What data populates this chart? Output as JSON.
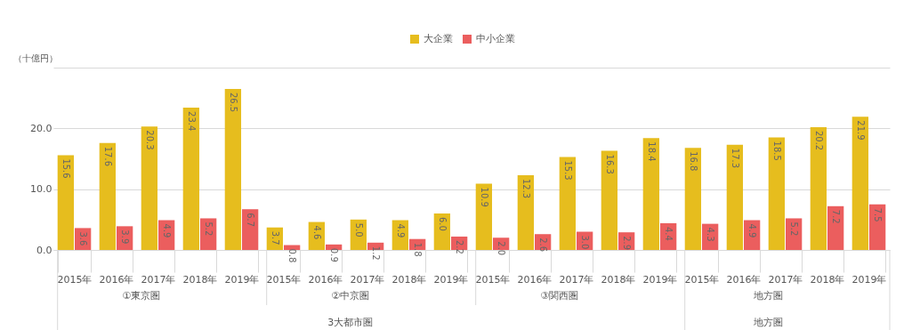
{
  "chart_data": {
    "type": "bar",
    "ylabel": "（十億円）",
    "categories": [
      "2015年",
      "2016年",
      "2017年",
      "2018年",
      "2019年",
      "2015年",
      "2016年",
      "2017年",
      "2018年",
      "2019年",
      "2015年",
      "2016年",
      "2017年",
      "2018年",
      "2019年",
      "2015年",
      "2016年",
      "2017年",
      "2018年",
      "2019年"
    ],
    "series": [
      {
        "name": "大企業",
        "color": "#e6bd1e",
        "values": [
          15.6,
          17.6,
          20.3,
          23.4,
          26.5,
          3.7,
          4.6,
          5.0,
          4.9,
          6.0,
          10.9,
          12.3,
          15.3,
          16.3,
          18.4,
          16.8,
          17.3,
          18.5,
          20.2,
          21.9
        ],
        "value_labels": [
          "15.6",
          "17.6",
          "20.3",
          "23.4",
          "26.5",
          "3.7",
          "4.6",
          "5.0",
          "4.9",
          "6.0",
          "10.9",
          "12.3",
          "15.3",
          "16.3",
          "18.4",
          "16.8",
          "17.3",
          "18.5",
          "20.2",
          "21.9"
        ]
      },
      {
        "name": "中小企業",
        "color": "#eb5e5e",
        "values": [
          3.6,
          3.9,
          4.9,
          5.2,
          6.7,
          0.8,
          0.9,
          1.2,
          1.8,
          2.2,
          2.0,
          2.6,
          3.0,
          2.9,
          4.4,
          4.3,
          4.9,
          5.2,
          7.2,
          7.5
        ],
        "value_labels": [
          "3.6",
          "3.9",
          "4.9",
          "5.2",
          "6.7",
          "0.8",
          "0.9",
          "1.2",
          "1.8",
          "2.2",
          "2.0",
          "2.6",
          "3.0",
          "2.9",
          "4.4",
          "4.3",
          "4.9",
          "5.2",
          "7.2",
          "7.5"
        ]
      }
    ],
    "ylim": [
      0,
      30
    ],
    "yticks": [
      {
        "value": 0,
        "label": "0.0"
      },
      {
        "value": 10,
        "label": "10.0"
      },
      {
        "value": 20,
        "label": "20.0"
      },
      {
        "value": 30,
        "label": null
      }
    ],
    "grid": "y",
    "legend": "top",
    "annotations": [
      "①東京圏",
      "②中京圏",
      "③関西圏",
      "地方圏",
      "3大都市圏",
      "地方圏"
    ]
  }
}
